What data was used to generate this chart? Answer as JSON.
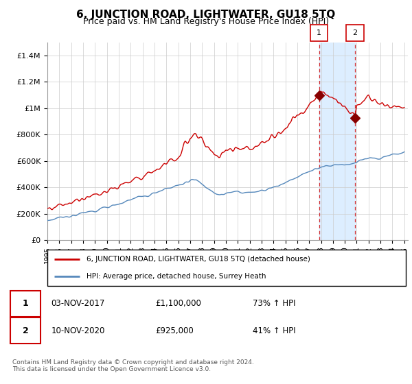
{
  "title": "6, JUNCTION ROAD, LIGHTWATER, GU18 5TQ",
  "subtitle": "Price paid vs. HM Land Registry's House Price Index (HPI)",
  "legend_line1": "6, JUNCTION ROAD, LIGHTWATER, GU18 5TQ (detached house)",
  "legend_line2": "HPI: Average price, detached house, Surrey Heath",
  "annotation1_label": "1",
  "annotation1_date": "03-NOV-2017",
  "annotation1_price": "£1,100,000",
  "annotation1_hpi": "73% ↑ HPI",
  "annotation2_label": "2",
  "annotation2_date": "10-NOV-2020",
  "annotation2_price": "£925,000",
  "annotation2_hpi": "41% ↑ HPI",
  "footer": "Contains HM Land Registry data © Crown copyright and database right 2024.\nThis data is licensed under the Open Government Licence v3.0.",
  "red_color": "#cc0000",
  "blue_color": "#5588bb",
  "shade_color": "#ddeeff",
  "ylim": [
    0,
    1500000
  ],
  "yticks": [
    0,
    200000,
    400000,
    600000,
    800000,
    1000000,
    1200000,
    1400000
  ],
  "ytick_labels": [
    "£0",
    "£200K",
    "£400K",
    "£600K",
    "£800K",
    "£1M",
    "£1.2M",
    "£1.4M"
  ],
  "marker1_x": 2017.83,
  "marker1_y": 1100000,
  "marker2_x": 2020.86,
  "marker2_y": 925000,
  "xlim_start": 1995,
  "xlim_end": 2025.3
}
